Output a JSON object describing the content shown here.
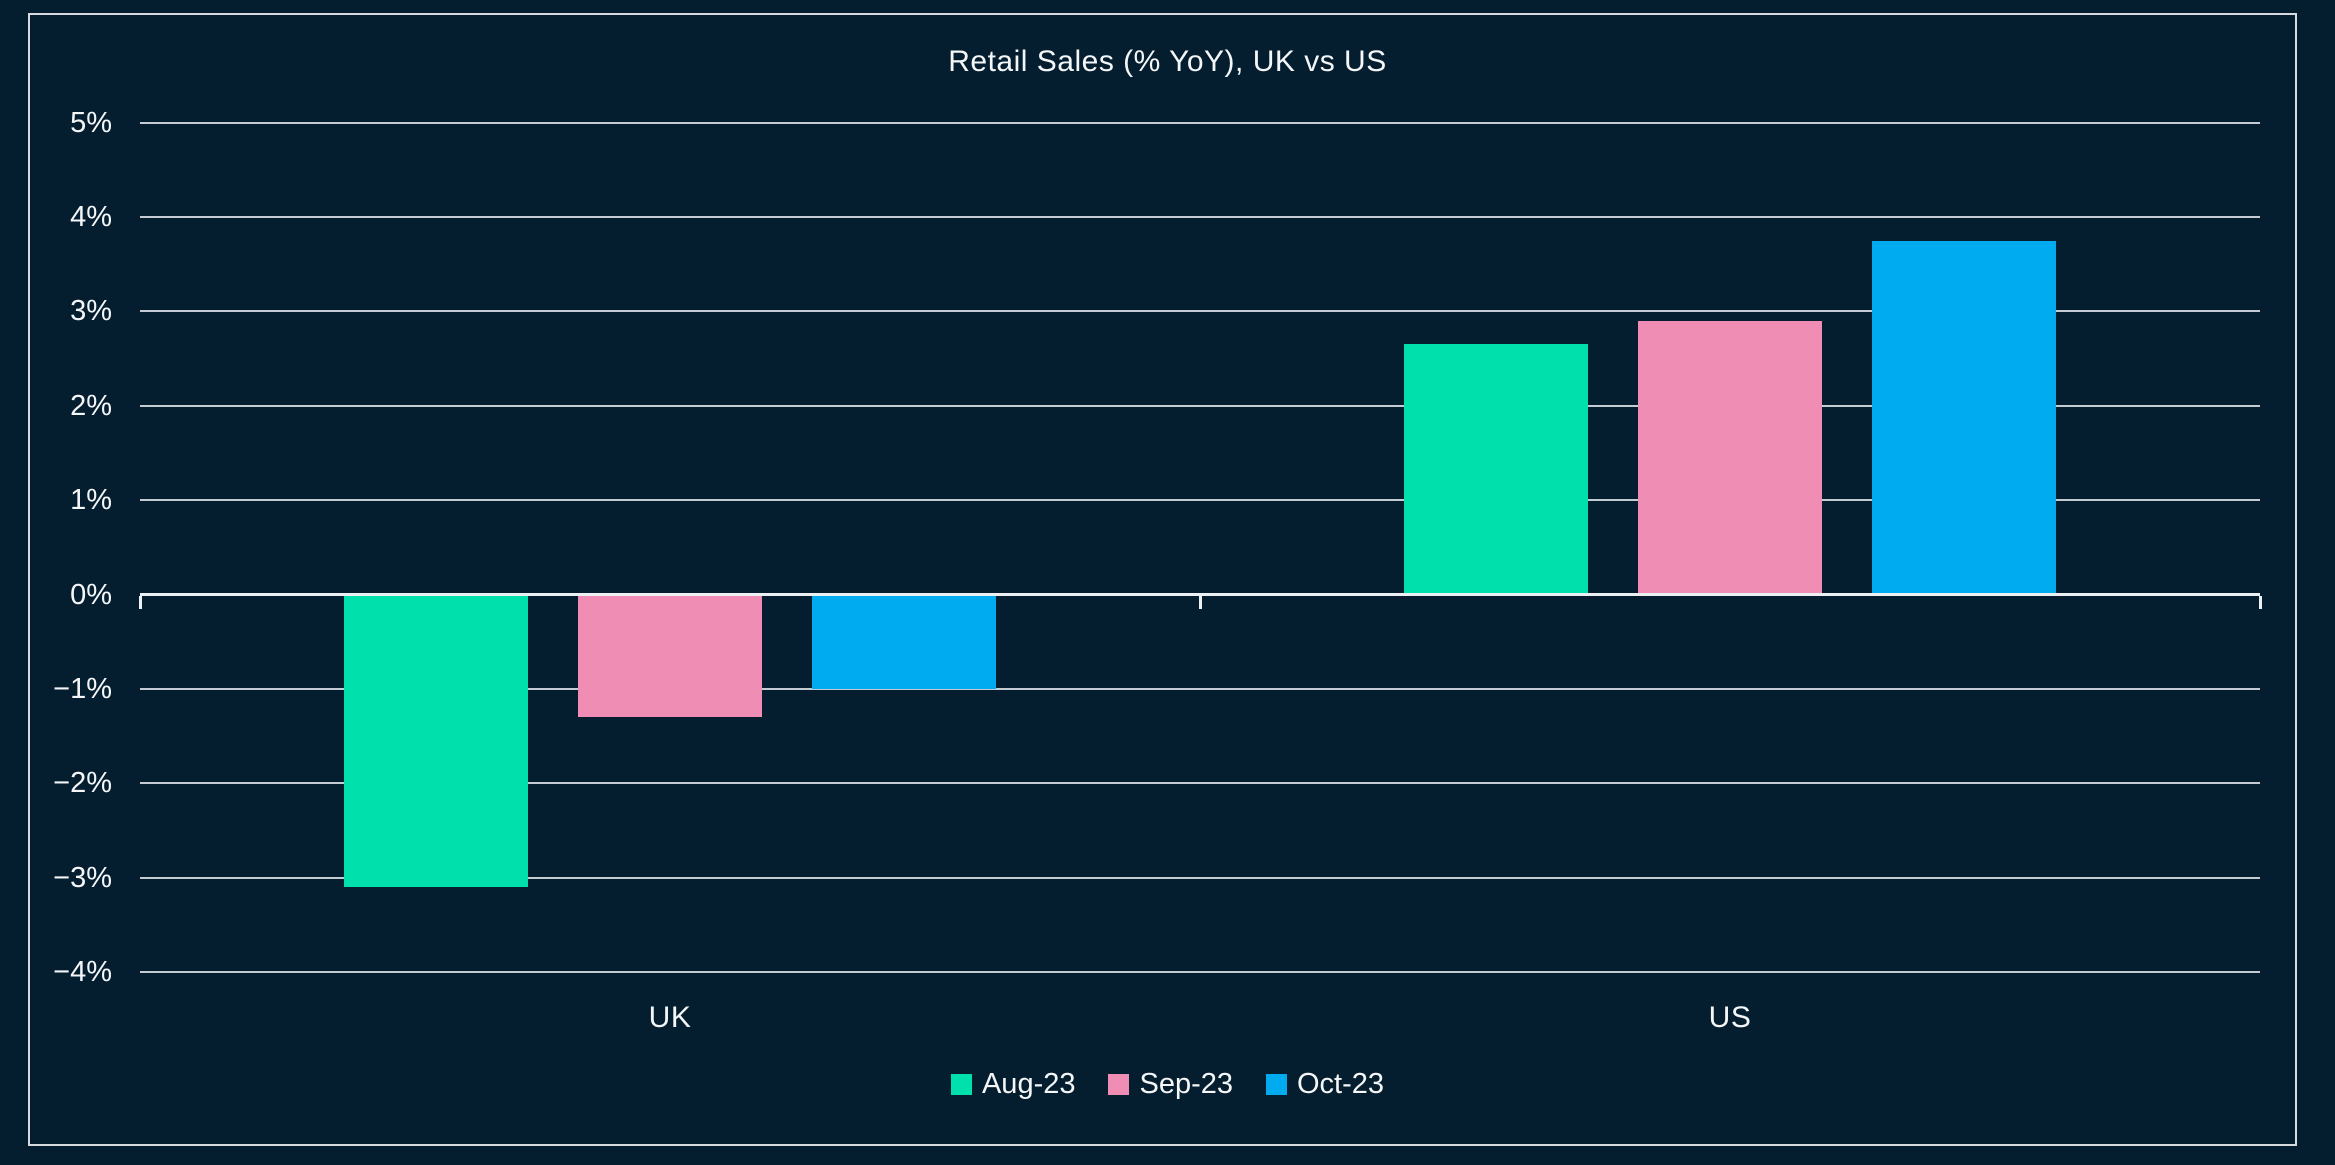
{
  "title": "Retail Sales (% YoY), UK vs US",
  "colors": {
    "background": "#041E30",
    "frame_border": "#D7DBE0",
    "gridline": "#C4CBD2",
    "zero_line": "#EDF0F3",
    "text": "#F4F6F8"
  },
  "chart_data": {
    "type": "bar",
    "title": "Retail Sales (% YoY), UK vs US",
    "categories": [
      "UK",
      "US"
    ],
    "series": [
      {
        "name": "Aug-23",
        "color": "#00E0AC",
        "values": [
          -3.1,
          2.65
        ]
      },
      {
        "name": "Sep-23",
        "color": "#F08DB5",
        "values": [
          -1.3,
          2.9
        ]
      },
      {
        "name": "Oct-23",
        "color": "#00ACEF",
        "values": [
          -1.0,
          3.75
        ]
      }
    ],
    "xlabel": "",
    "ylabel": "",
    "ylim": [
      -4,
      5
    ],
    "yticks": [
      {
        "value": 5,
        "label": "5%"
      },
      {
        "value": 4,
        "label": "4%"
      },
      {
        "value": 3,
        "label": "3%"
      },
      {
        "value": 2,
        "label": "2%"
      },
      {
        "value": 1,
        "label": "1%"
      },
      {
        "value": 0,
        "label": "0%"
      },
      {
        "value": -1,
        "label": "−1%"
      },
      {
        "value": -2,
        "label": "−2%"
      },
      {
        "value": -3,
        "label": "−3%"
      },
      {
        "value": -4,
        "label": "−4%"
      }
    ],
    "grid": true,
    "legend": {
      "position": "bottom",
      "items": [
        "Aug-23",
        "Sep-23",
        "Oct-23"
      ]
    }
  }
}
